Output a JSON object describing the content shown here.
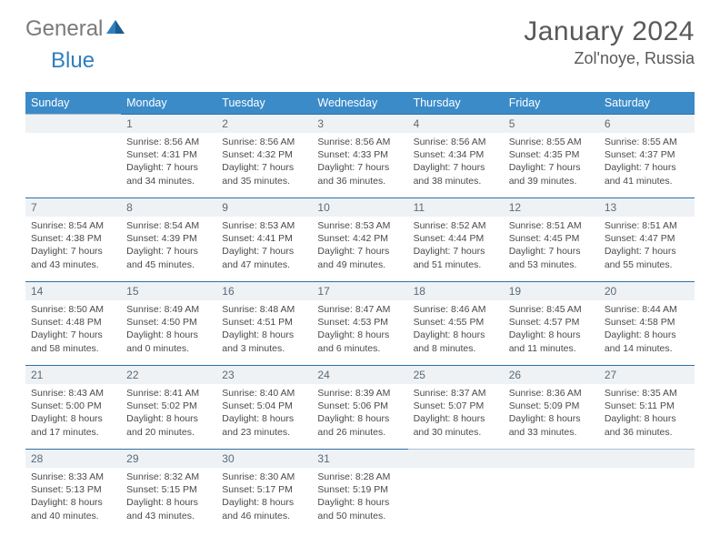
{
  "brand": {
    "general": "General",
    "blue": "Blue"
  },
  "title": "January 2024",
  "location": "Zol'noye, Russia",
  "colors": {
    "header_bg": "#3b8bc8",
    "header_fg": "#ffffff",
    "daynum_bg": "#eef2f5",
    "daynum_border": "#2f6fa8",
    "text": "#4a4a4a",
    "title_color": "#595959",
    "logo_gray": "#7a7a7a",
    "logo_blue": "#2f7fbf"
  },
  "typography": {
    "title_fontsize": 30,
    "location_fontsize": 18,
    "header_fontsize": 12.5,
    "daynum_fontsize": 12,
    "body_fontsize": 10.5
  },
  "weekdays": [
    "Sunday",
    "Monday",
    "Tuesday",
    "Wednesday",
    "Thursday",
    "Friday",
    "Saturday"
  ],
  "weeks": [
    [
      null,
      {
        "n": "1",
        "sunrise": "Sunrise: 8:56 AM",
        "sunset": "Sunset: 4:31 PM",
        "daylight": "Daylight: 7 hours and 34 minutes."
      },
      {
        "n": "2",
        "sunrise": "Sunrise: 8:56 AM",
        "sunset": "Sunset: 4:32 PM",
        "daylight": "Daylight: 7 hours and 35 minutes."
      },
      {
        "n": "3",
        "sunrise": "Sunrise: 8:56 AM",
        "sunset": "Sunset: 4:33 PM",
        "daylight": "Daylight: 7 hours and 36 minutes."
      },
      {
        "n": "4",
        "sunrise": "Sunrise: 8:56 AM",
        "sunset": "Sunset: 4:34 PM",
        "daylight": "Daylight: 7 hours and 38 minutes."
      },
      {
        "n": "5",
        "sunrise": "Sunrise: 8:55 AM",
        "sunset": "Sunset: 4:35 PM",
        "daylight": "Daylight: 7 hours and 39 minutes."
      },
      {
        "n": "6",
        "sunrise": "Sunrise: 8:55 AM",
        "sunset": "Sunset: 4:37 PM",
        "daylight": "Daylight: 7 hours and 41 minutes."
      }
    ],
    [
      {
        "n": "7",
        "sunrise": "Sunrise: 8:54 AM",
        "sunset": "Sunset: 4:38 PM",
        "daylight": "Daylight: 7 hours and 43 minutes."
      },
      {
        "n": "8",
        "sunrise": "Sunrise: 8:54 AM",
        "sunset": "Sunset: 4:39 PM",
        "daylight": "Daylight: 7 hours and 45 minutes."
      },
      {
        "n": "9",
        "sunrise": "Sunrise: 8:53 AM",
        "sunset": "Sunset: 4:41 PM",
        "daylight": "Daylight: 7 hours and 47 minutes."
      },
      {
        "n": "10",
        "sunrise": "Sunrise: 8:53 AM",
        "sunset": "Sunset: 4:42 PM",
        "daylight": "Daylight: 7 hours and 49 minutes."
      },
      {
        "n": "11",
        "sunrise": "Sunrise: 8:52 AM",
        "sunset": "Sunset: 4:44 PM",
        "daylight": "Daylight: 7 hours and 51 minutes."
      },
      {
        "n": "12",
        "sunrise": "Sunrise: 8:51 AM",
        "sunset": "Sunset: 4:45 PM",
        "daylight": "Daylight: 7 hours and 53 minutes."
      },
      {
        "n": "13",
        "sunrise": "Sunrise: 8:51 AM",
        "sunset": "Sunset: 4:47 PM",
        "daylight": "Daylight: 7 hours and 55 minutes."
      }
    ],
    [
      {
        "n": "14",
        "sunrise": "Sunrise: 8:50 AM",
        "sunset": "Sunset: 4:48 PM",
        "daylight": "Daylight: 7 hours and 58 minutes."
      },
      {
        "n": "15",
        "sunrise": "Sunrise: 8:49 AM",
        "sunset": "Sunset: 4:50 PM",
        "daylight": "Daylight: 8 hours and 0 minutes."
      },
      {
        "n": "16",
        "sunrise": "Sunrise: 8:48 AM",
        "sunset": "Sunset: 4:51 PM",
        "daylight": "Daylight: 8 hours and 3 minutes."
      },
      {
        "n": "17",
        "sunrise": "Sunrise: 8:47 AM",
        "sunset": "Sunset: 4:53 PM",
        "daylight": "Daylight: 8 hours and 6 minutes."
      },
      {
        "n": "18",
        "sunrise": "Sunrise: 8:46 AM",
        "sunset": "Sunset: 4:55 PM",
        "daylight": "Daylight: 8 hours and 8 minutes."
      },
      {
        "n": "19",
        "sunrise": "Sunrise: 8:45 AM",
        "sunset": "Sunset: 4:57 PM",
        "daylight": "Daylight: 8 hours and 11 minutes."
      },
      {
        "n": "20",
        "sunrise": "Sunrise: 8:44 AM",
        "sunset": "Sunset: 4:58 PM",
        "daylight": "Daylight: 8 hours and 14 minutes."
      }
    ],
    [
      {
        "n": "21",
        "sunrise": "Sunrise: 8:43 AM",
        "sunset": "Sunset: 5:00 PM",
        "daylight": "Daylight: 8 hours and 17 minutes."
      },
      {
        "n": "22",
        "sunrise": "Sunrise: 8:41 AM",
        "sunset": "Sunset: 5:02 PM",
        "daylight": "Daylight: 8 hours and 20 minutes."
      },
      {
        "n": "23",
        "sunrise": "Sunrise: 8:40 AM",
        "sunset": "Sunset: 5:04 PM",
        "daylight": "Daylight: 8 hours and 23 minutes."
      },
      {
        "n": "24",
        "sunrise": "Sunrise: 8:39 AM",
        "sunset": "Sunset: 5:06 PM",
        "daylight": "Daylight: 8 hours and 26 minutes."
      },
      {
        "n": "25",
        "sunrise": "Sunrise: 8:37 AM",
        "sunset": "Sunset: 5:07 PM",
        "daylight": "Daylight: 8 hours and 30 minutes."
      },
      {
        "n": "26",
        "sunrise": "Sunrise: 8:36 AM",
        "sunset": "Sunset: 5:09 PM",
        "daylight": "Daylight: 8 hours and 33 minutes."
      },
      {
        "n": "27",
        "sunrise": "Sunrise: 8:35 AM",
        "sunset": "Sunset: 5:11 PM",
        "daylight": "Daylight: 8 hours and 36 minutes."
      }
    ],
    [
      {
        "n": "28",
        "sunrise": "Sunrise: 8:33 AM",
        "sunset": "Sunset: 5:13 PM",
        "daylight": "Daylight: 8 hours and 40 minutes."
      },
      {
        "n": "29",
        "sunrise": "Sunrise: 8:32 AM",
        "sunset": "Sunset: 5:15 PM",
        "daylight": "Daylight: 8 hours and 43 minutes."
      },
      {
        "n": "30",
        "sunrise": "Sunrise: 8:30 AM",
        "sunset": "Sunset: 5:17 PM",
        "daylight": "Daylight: 8 hours and 46 minutes."
      },
      {
        "n": "31",
        "sunrise": "Sunrise: 8:28 AM",
        "sunset": "Sunset: 5:19 PM",
        "daylight": "Daylight: 8 hours and 50 minutes."
      },
      null,
      null,
      null
    ]
  ]
}
